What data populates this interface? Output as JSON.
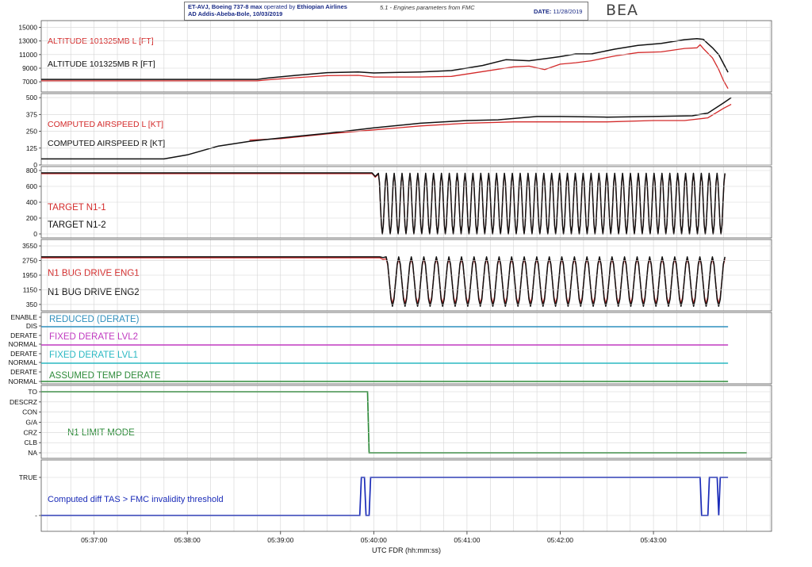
{
  "header": {
    "line1_bold": "ET-AVJ, Boeing 737-8 max",
    "line1_normal": " operated by ",
    "line1_airline": "Ethiopian Airlines",
    "line2": "AD Addis-Abeba-Bole, 10/03/2019",
    "subtitle": "5.1 - Engines parameters from FMC",
    "date_label": "DATE:",
    "date_value": "11/28/2019",
    "logo_text": "BEA"
  },
  "colors": {
    "red": "#d32a2a",
    "black": "#111111",
    "blue_teal": "#2f8fbd",
    "magenta": "#c03ac0",
    "cyan": "#2ab8c2",
    "green": "#2e8b3a",
    "navy": "#1a2bb8",
    "grid": "#d4d4d4"
  },
  "chart_data": {
    "type": "line",
    "xlabel": "UTC FDR (hh:mm:ss)",
    "x_ticks": [
      "05:37:00",
      "05:38:00",
      "05:39:00",
      "05:40:00",
      "05:41:00",
      "05:42:00",
      "05:43:00"
    ],
    "xlim": [
      "05:36:26",
      "05:44:16"
    ],
    "panels": [
      {
        "id": "altitude",
        "ylim": [
          5500,
          16000
        ],
        "y_ticks": [
          "15000",
          "13000",
          "11000",
          "9000",
          "7000"
        ],
        "y_tick_values": [
          15000,
          13000,
          11000,
          9000,
          7000
        ],
        "labels": [
          {
            "text": "ALTITUDE 101325MB L [FT]",
            "color": "red"
          },
          {
            "text": "ALTITUDE 101325MB R [FT]",
            "color": "black"
          }
        ],
        "series": [
          {
            "name": "ALTITUDE 101325MB L [FT]",
            "color": "red",
            "points": [
              [
                "05:36:26",
                7150
              ],
              [
                "05:38:00",
                7150
              ],
              [
                "05:38:45",
                7150
              ],
              [
                "05:38:52",
                7300
              ],
              [
                "05:39:10",
                7600
              ],
              [
                "05:39:30",
                7900
              ],
              [
                "05:39:50",
                7950
              ],
              [
                "05:40:00",
                7700
              ],
              [
                "05:40:30",
                7700
              ],
              [
                "05:40:50",
                7800
              ],
              [
                "05:41:10",
                8500
              ],
              [
                "05:41:30",
                9200
              ],
              [
                "05:41:40",
                9300
              ],
              [
                "05:41:50",
                8800
              ],
              [
                "05:42:00",
                9600
              ],
              [
                "05:42:10",
                9800
              ],
              [
                "05:42:20",
                10100
              ],
              [
                "05:42:35",
                10800
              ],
              [
                "05:42:50",
                11300
              ],
              [
                "05:43:05",
                11400
              ],
              [
                "05:43:20",
                11900
              ],
              [
                "05:43:28",
                12000
              ],
              [
                "05:43:30",
                12450
              ],
              [
                "05:43:32",
                11900
              ],
              [
                "05:43:38",
                10500
              ],
              [
                "05:43:42",
                8800
              ],
              [
                "05:43:45",
                7200
              ],
              [
                "05:43:48",
                6000
              ]
            ]
          },
          {
            "name": "ALTITUDE 101325MB R [FT]",
            "color": "black",
            "points": [
              [
                "05:36:26",
                7350
              ],
              [
                "05:38:00",
                7350
              ],
              [
                "05:38:45",
                7350
              ],
              [
                "05:38:52",
                7550
              ],
              [
                "05:39:10",
                7950
              ],
              [
                "05:39:30",
                8350
              ],
              [
                "05:39:50",
                8450
              ],
              [
                "05:40:00",
                8300
              ],
              [
                "05:40:30",
                8450
              ],
              [
                "05:40:50",
                8650
              ],
              [
                "05:41:10",
                9400
              ],
              [
                "05:41:25",
                10250
              ],
              [
                "05:41:40",
                10100
              ],
              [
                "05:41:55",
                10550
              ],
              [
                "05:42:00",
                10700
              ],
              [
                "05:42:10",
                11100
              ],
              [
                "05:42:20",
                11100
              ],
              [
                "05:42:35",
                11800
              ],
              [
                "05:42:50",
                12350
              ],
              [
                "05:43:05",
                12650
              ],
              [
                "05:43:20",
                13200
              ],
              [
                "05:43:28",
                13350
              ],
              [
                "05:43:32",
                13250
              ],
              [
                "05:43:38",
                12000
              ],
              [
                "05:43:42",
                11000
              ],
              [
                "05:43:48",
                8400
              ]
            ]
          }
        ]
      },
      {
        "id": "airspeed",
        "ylim": [
          0,
          530
        ],
        "y_ticks": [
          "500",
          "375",
          "250",
          "125",
          "0"
        ],
        "y_tick_values": [
          500,
          375,
          250,
          125,
          0
        ],
        "labels": [
          {
            "text": "COMPUTED AIRSPEED L [KT]",
            "color": "red"
          },
          {
            "text": "COMPUTED AIRSPEED R [KT]",
            "color": "black"
          }
        ],
        "series": [
          {
            "name": "COMPUTED AIRSPEED L [KT]",
            "color": "red",
            "points": [
              [
                "05:38:40",
                185
              ],
              [
                "05:39:00",
                195
              ],
              [
                "05:39:30",
                230
              ],
              [
                "05:40:00",
                260
              ],
              [
                "05:40:30",
                290
              ],
              [
                "05:41:00",
                310
              ],
              [
                "05:41:30",
                320
              ],
              [
                "05:42:00",
                320
              ],
              [
                "05:42:30",
                320
              ],
              [
                "05:43:00",
                330
              ],
              [
                "05:43:20",
                330
              ],
              [
                "05:43:35",
                350
              ],
              [
                "05:43:45",
                420
              ],
              [
                "05:43:50",
                450
              ]
            ]
          },
          {
            "name": "COMPUTED AIRSPEED R [KT]",
            "color": "black",
            "points": [
              [
                "05:36:26",
                45
              ],
              [
                "05:37:45",
                45
              ],
              [
                "05:38:00",
                75
              ],
              [
                "05:38:20",
                140
              ],
              [
                "05:38:40",
                175
              ],
              [
                "05:39:00",
                200
              ],
              [
                "05:39:30",
                235
              ],
              [
                "05:40:00",
                275
              ],
              [
                "05:40:30",
                310
              ],
              [
                "05:41:00",
                330
              ],
              [
                "05:41:20",
                335
              ],
              [
                "05:41:45",
                360
              ],
              [
                "05:42:00",
                360
              ],
              [
                "05:42:30",
                355
              ],
              [
                "05:43:00",
                360
              ],
              [
                "05:43:25",
                365
              ],
              [
                "05:43:35",
                385
              ],
              [
                "05:43:45",
                460
              ],
              [
                "05:43:50",
                500
              ]
            ]
          }
        ]
      },
      {
        "id": "target_n1",
        "ylim": [
          -50,
          850
        ],
        "y_ticks": [
          "800",
          "600",
          "400",
          "200",
          "0"
        ],
        "y_tick_values": [
          800,
          600,
          400,
          200,
          0
        ],
        "labels": [
          {
            "text": "TARGET N1-1",
            "color": "red"
          },
          {
            "text": "TARGET N1-2",
            "color": "black"
          }
        ],
        "series": [
          {
            "name": "TARGET N1-1",
            "color": "red",
            "pattern": "oscillating",
            "steady": 760,
            "osc_start": "05:40:03",
            "osc_end": "05:43:46",
            "high": 755,
            "low": 0,
            "cycles": 44
          },
          {
            "name": "TARGET N1-2",
            "color": "black",
            "pattern": "oscillating",
            "steady": 770,
            "osc_start": "05:40:03",
            "osc_end": "05:43:46",
            "high": 765,
            "low": 0,
            "cycles": 44
          }
        ]
      },
      {
        "id": "n1_bug",
        "ylim": [
          0,
          3900
        ],
        "y_ticks": [
          "3550",
          "2750",
          "1950",
          "1150",
          "350"
        ],
        "y_tick_values": [
          3550,
          2750,
          1950,
          1150,
          350
        ],
        "labels": [
          {
            "text": "N1 BUG DRIVE ENG1",
            "color": "red"
          },
          {
            "text": "N1 BUG DRIVE ENG2",
            "color": "black"
          }
        ],
        "series": [
          {
            "name": "N1 BUG DRIVE ENG1",
            "color": "red",
            "pattern": "oscillating",
            "steady": 2900,
            "osc_start": "05:40:08",
            "osc_end": "05:43:46",
            "high": 2850,
            "low": 400,
            "cycles": 27
          },
          {
            "name": "N1 BUG DRIVE ENG2",
            "color": "black",
            "pattern": "oscillating",
            "steady": 2950,
            "osc_start": "05:40:08",
            "osc_end": "05:43:46",
            "high": 2950,
            "low": 250,
            "cycles": 27
          }
        ]
      },
      {
        "id": "derate",
        "y_ticks": [
          "ENABLE",
          "DIS",
          "DERATE",
          "NORMAL",
          "DERATE",
          "NORMAL",
          "DERATE",
          "NORMAL"
        ],
        "labels": [
          {
            "text": "REDUCED (DERATE)",
            "color": "blue_teal"
          },
          {
            "text": "FIXED DERATE LVL2",
            "color": "magenta"
          },
          {
            "text": "FIXED DERATE LVL1",
            "color": "cyan"
          },
          {
            "text": "ASSUMED TEMP DERATE",
            "color": "green"
          }
        ],
        "series": [
          {
            "name": "REDUCED (DERATE)",
            "color": "blue_teal",
            "value": "DIS"
          },
          {
            "name": "FIXED DERATE LVL2",
            "color": "magenta",
            "value": "NORMAL"
          },
          {
            "name": "FIXED DERATE LVL1",
            "color": "cyan",
            "value": "NORMAL"
          },
          {
            "name": "ASSUMED TEMP DERATE",
            "color": "green",
            "value": "NORMAL"
          }
        ]
      },
      {
        "id": "n1_limit_mode",
        "y_ticks": [
          "TO",
          "DESCRZ",
          "CON",
          "G/A",
          "CRZ",
          "CLB",
          "NA"
        ],
        "labels": [
          {
            "text": "N1 LIMIT MODE",
            "color": "green"
          }
        ],
        "series": [
          {
            "name": "N1 LIMIT MODE",
            "color": "green",
            "steps": [
              [
                "05:36:26",
                "TO"
              ],
              [
                "05:39:56",
                "TO"
              ],
              [
                "05:39:57",
                "NA"
              ],
              [
                "05:44:00",
                "NA"
              ]
            ]
          }
        ]
      },
      {
        "id": "diff_tas",
        "y_ticks": [
          "TRUE",
          "-"
        ],
        "labels": [
          {
            "text": "Computed diff TAS > FMC invalidity threshold",
            "color": "navy"
          }
        ],
        "series": [
          {
            "name": "Computed diff TAS > FMC invalidity threshold",
            "color": "navy",
            "steps": [
              [
                "05:36:26",
                "-"
              ],
              [
                "05:39:51",
                "-"
              ],
              [
                "05:39:52",
                "TRUE"
              ],
              [
                "05:39:54",
                "TRUE"
              ],
              [
                "05:39:55",
                "-"
              ],
              [
                "05:39:57",
                "-"
              ],
              [
                "05:39:58",
                "TRUE"
              ],
              [
                "05:43:30",
                "TRUE"
              ],
              [
                "05:43:31",
                "-"
              ],
              [
                "05:43:35",
                "-"
              ],
              [
                "05:43:36",
                "TRUE"
              ],
              [
                "05:43:41",
                "TRUE"
              ],
              [
                "05:43:42",
                "-"
              ],
              [
                "05:43:43",
                "TRUE"
              ],
              [
                "05:43:48",
                "TRUE"
              ]
            ]
          }
        ]
      }
    ]
  }
}
